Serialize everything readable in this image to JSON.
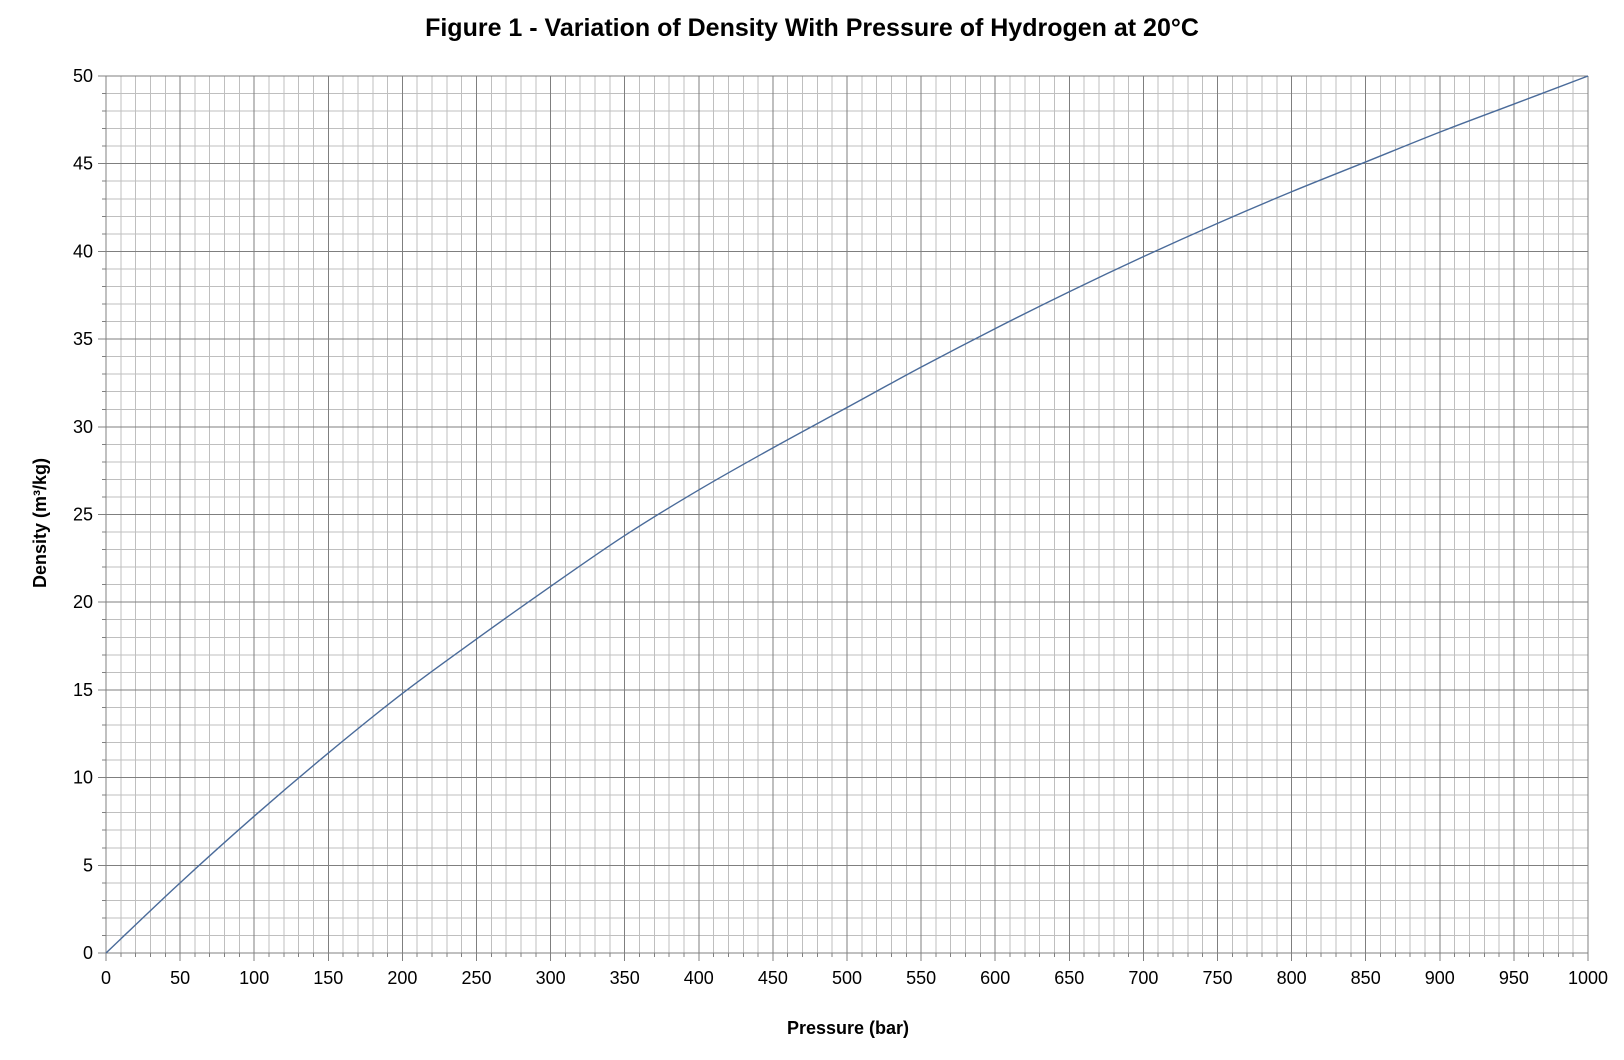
{
  "chart_data": {
    "type": "line",
    "title": "Figure 1 - Variation of Density With Pressure of Hydrogen at 20°C",
    "xlabel": "Pressure (bar)",
    "ylabel": "Density (m³/kg)",
    "xlim": [
      0,
      1000
    ],
    "ylim": [
      0,
      50
    ],
    "x_major_step": 50,
    "x_minor_step": 10,
    "y_major_step": 5,
    "y_minor_step": 1,
    "grid": true,
    "legend": "none",
    "series": [
      {
        "x": [
          0,
          50,
          100,
          150,
          200,
          250,
          300,
          350,
          400,
          450,
          500,
          550,
          600,
          650,
          700,
          750,
          800,
          850,
          900,
          950,
          1000
        ],
        "y": [
          0,
          4.0,
          7.8,
          11.4,
          14.8,
          17.9,
          20.9,
          23.8,
          26.4,
          28.8,
          31.1,
          33.4,
          35.6,
          37.7,
          39.7,
          41.6,
          43.4,
          45.1,
          46.8,
          48.4,
          50.0
        ]
      }
    ],
    "colors": {
      "line": "#4a6b9a",
      "major_grid": "#7f7f7f",
      "minor_grid": "#bfbfbf",
      "axis": "#808080"
    }
  }
}
